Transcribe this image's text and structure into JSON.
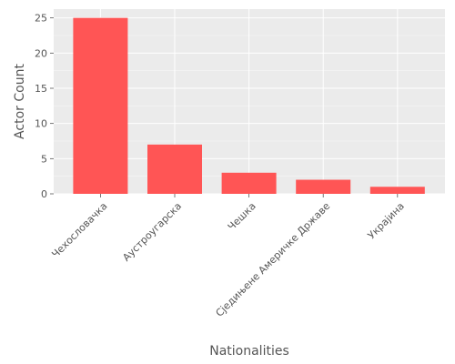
{
  "chart_data": {
    "type": "bar",
    "categories": [
      "Чехословачка",
      "Аустроугарска",
      "Чешка",
      "Сједињене Америчке Државе",
      "Украјина"
    ],
    "values": [
      25,
      7,
      3,
      2,
      1
    ],
    "title": "",
    "xlabel": "Nationalities",
    "ylabel": "Actor Count",
    "ylim": [
      0,
      26.25
    ],
    "yticks": [
      0,
      5,
      10,
      15,
      20,
      25
    ],
    "grid": true,
    "legend": "none"
  },
  "colors": {
    "bar": "#ff5555",
    "plot_background": "#ebebeb",
    "grid": "#ffffff",
    "text": "#555555"
  }
}
